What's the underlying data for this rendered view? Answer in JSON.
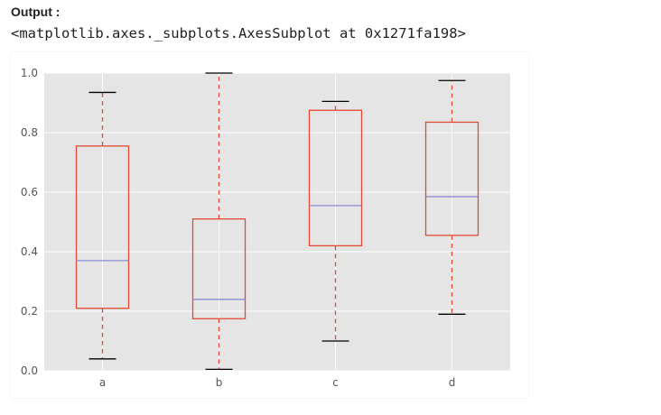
{
  "header": {
    "label": "Output :",
    "repr": "<matplotlib.axes._subplots.AxesSubplot at 0x1271fa198>"
  },
  "chart_data": {
    "type": "boxplot",
    "categories": [
      "a",
      "b",
      "c",
      "d"
    ],
    "boxes": [
      {
        "category": "a",
        "whisker_low": 0.04,
        "q1": 0.21,
        "median": 0.37,
        "q3": 0.755,
        "whisker_high": 0.935
      },
      {
        "category": "b",
        "whisker_low": 0.005,
        "q1": 0.175,
        "median": 0.24,
        "q3": 0.51,
        "whisker_high": 1.0
      },
      {
        "category": "c",
        "whisker_low": 0.1,
        "q1": 0.42,
        "median": 0.555,
        "q3": 0.875,
        "whisker_high": 0.905
      },
      {
        "category": "d",
        "whisker_low": 0.19,
        "q1": 0.455,
        "median": 0.585,
        "q3": 0.835,
        "whisker_high": 0.975
      }
    ],
    "ylim": [
      0.0,
      1.0
    ],
    "yticks": [
      0.0,
      0.2,
      0.4,
      0.6,
      0.8,
      1.0
    ],
    "ytick_labels": [
      "0.0",
      "0.2",
      "0.4",
      "0.6",
      "0.8",
      "1.0"
    ],
    "grid": true,
    "title": "",
    "xlabel": "",
    "ylabel": "",
    "style": "ggplot",
    "colors": {
      "plot_background": "#e5e5e5",
      "grid": "#ffffff",
      "box": "#e24a33",
      "median": "#8b8bcf",
      "caps": "#000000"
    }
  }
}
